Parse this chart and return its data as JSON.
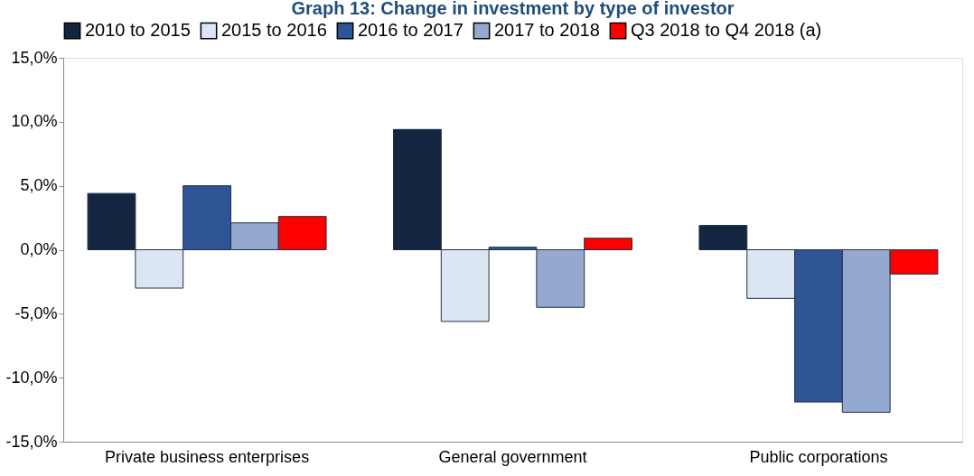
{
  "chart_data": {
    "type": "bar",
    "title": "Graph 13: Change in investment by type of investor",
    "categories": [
      "Private business enterprises",
      "General government",
      "Public corporations"
    ],
    "series": [
      {
        "name": "2010 to 2015",
        "color": "#14253f",
        "values": [
          4.4,
          9.4,
          1.9
        ]
      },
      {
        "name": "2015 to 2016",
        "color": "#dce6f2",
        "values": [
          -3.0,
          -5.6,
          -3.8
        ]
      },
      {
        "name": "2016 to 2017",
        "color": "#2f5597",
        "values": [
          5.0,
          0.2,
          -11.9
        ]
      },
      {
        "name": "2017 to 2018",
        "color": "#95a9d0",
        "values": [
          2.1,
          -4.5,
          -12.7
        ]
      },
      {
        "name": "Q3 2018 to Q4 2018 (a)",
        "color": "#ff0000",
        "values": [
          2.6,
          0.9,
          -1.9
        ]
      }
    ],
    "ylim": [
      -15,
      15
    ],
    "yticks": [
      {
        "value": -15,
        "label": "-15,0%"
      },
      {
        "value": -10,
        "label": "-10,0%"
      },
      {
        "value": -5,
        "label": "-5,0%"
      },
      {
        "value": 0,
        "label": "0,0%"
      },
      {
        "value": 5,
        "label": "5,0%"
      },
      {
        "value": 10,
        "label": "10,0%"
      },
      {
        "value": 15,
        "label": "15,0%"
      }
    ],
    "grid": false,
    "legend": "top"
  }
}
